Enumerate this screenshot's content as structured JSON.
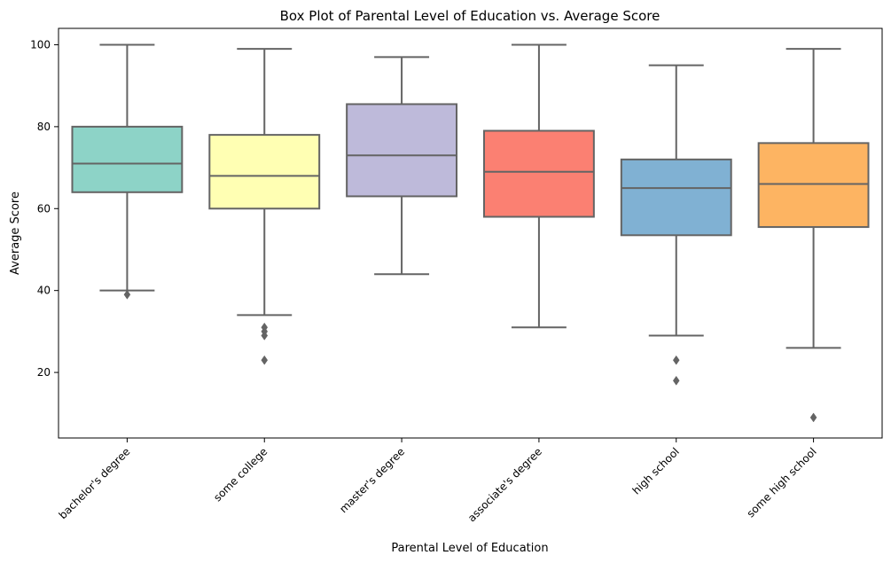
{
  "chart_data": {
    "type": "box",
    "title": "Box Plot of Parental Level of Education vs. Average Score",
    "xlabel": "Parental Level of Education",
    "ylabel": "Average Score",
    "ylim": [
      4,
      104
    ],
    "yticks": [
      20,
      40,
      60,
      80,
      100
    ],
    "grid": false,
    "legend": "none",
    "categories": [
      "bachelor's degree",
      "some college",
      "master's degree",
      "associate's degree",
      "high school",
      "some high school"
    ],
    "boxes": [
      {
        "category": "bachelor's degree",
        "whisker_low": 40,
        "q1": 64,
        "median": 71,
        "q3": 80,
        "whisker_high": 100,
        "outliers": [
          39
        ],
        "color": "#8dd3c7"
      },
      {
        "category": "some college",
        "whisker_low": 34,
        "q1": 60,
        "median": 68,
        "q3": 78,
        "whisker_high": 99,
        "outliers": [
          31,
          30,
          29,
          23
        ],
        "color": "#ffffb3"
      },
      {
        "category": "master's degree",
        "whisker_low": 44,
        "q1": 63,
        "median": 73,
        "q3": 85.5,
        "whisker_high": 97,
        "outliers": [],
        "color": "#bebada"
      },
      {
        "category": "associate's degree",
        "whisker_low": 31,
        "q1": 58,
        "median": 69,
        "q3": 79,
        "whisker_high": 100,
        "outliers": [],
        "color": "#fb8072"
      },
      {
        "category": "high school",
        "whisker_low": 29,
        "q1": 53.5,
        "median": 65,
        "q3": 72,
        "whisker_high": 95,
        "outliers": [
          23,
          18
        ],
        "color": "#80b1d3"
      },
      {
        "category": "some high school",
        "whisker_low": 26,
        "q1": 55.5,
        "median": 66,
        "q3": 76,
        "whisker_high": 99,
        "outliers": [
          9
        ],
        "color": "#fdb462"
      }
    ],
    "line_color": "#646464"
  }
}
